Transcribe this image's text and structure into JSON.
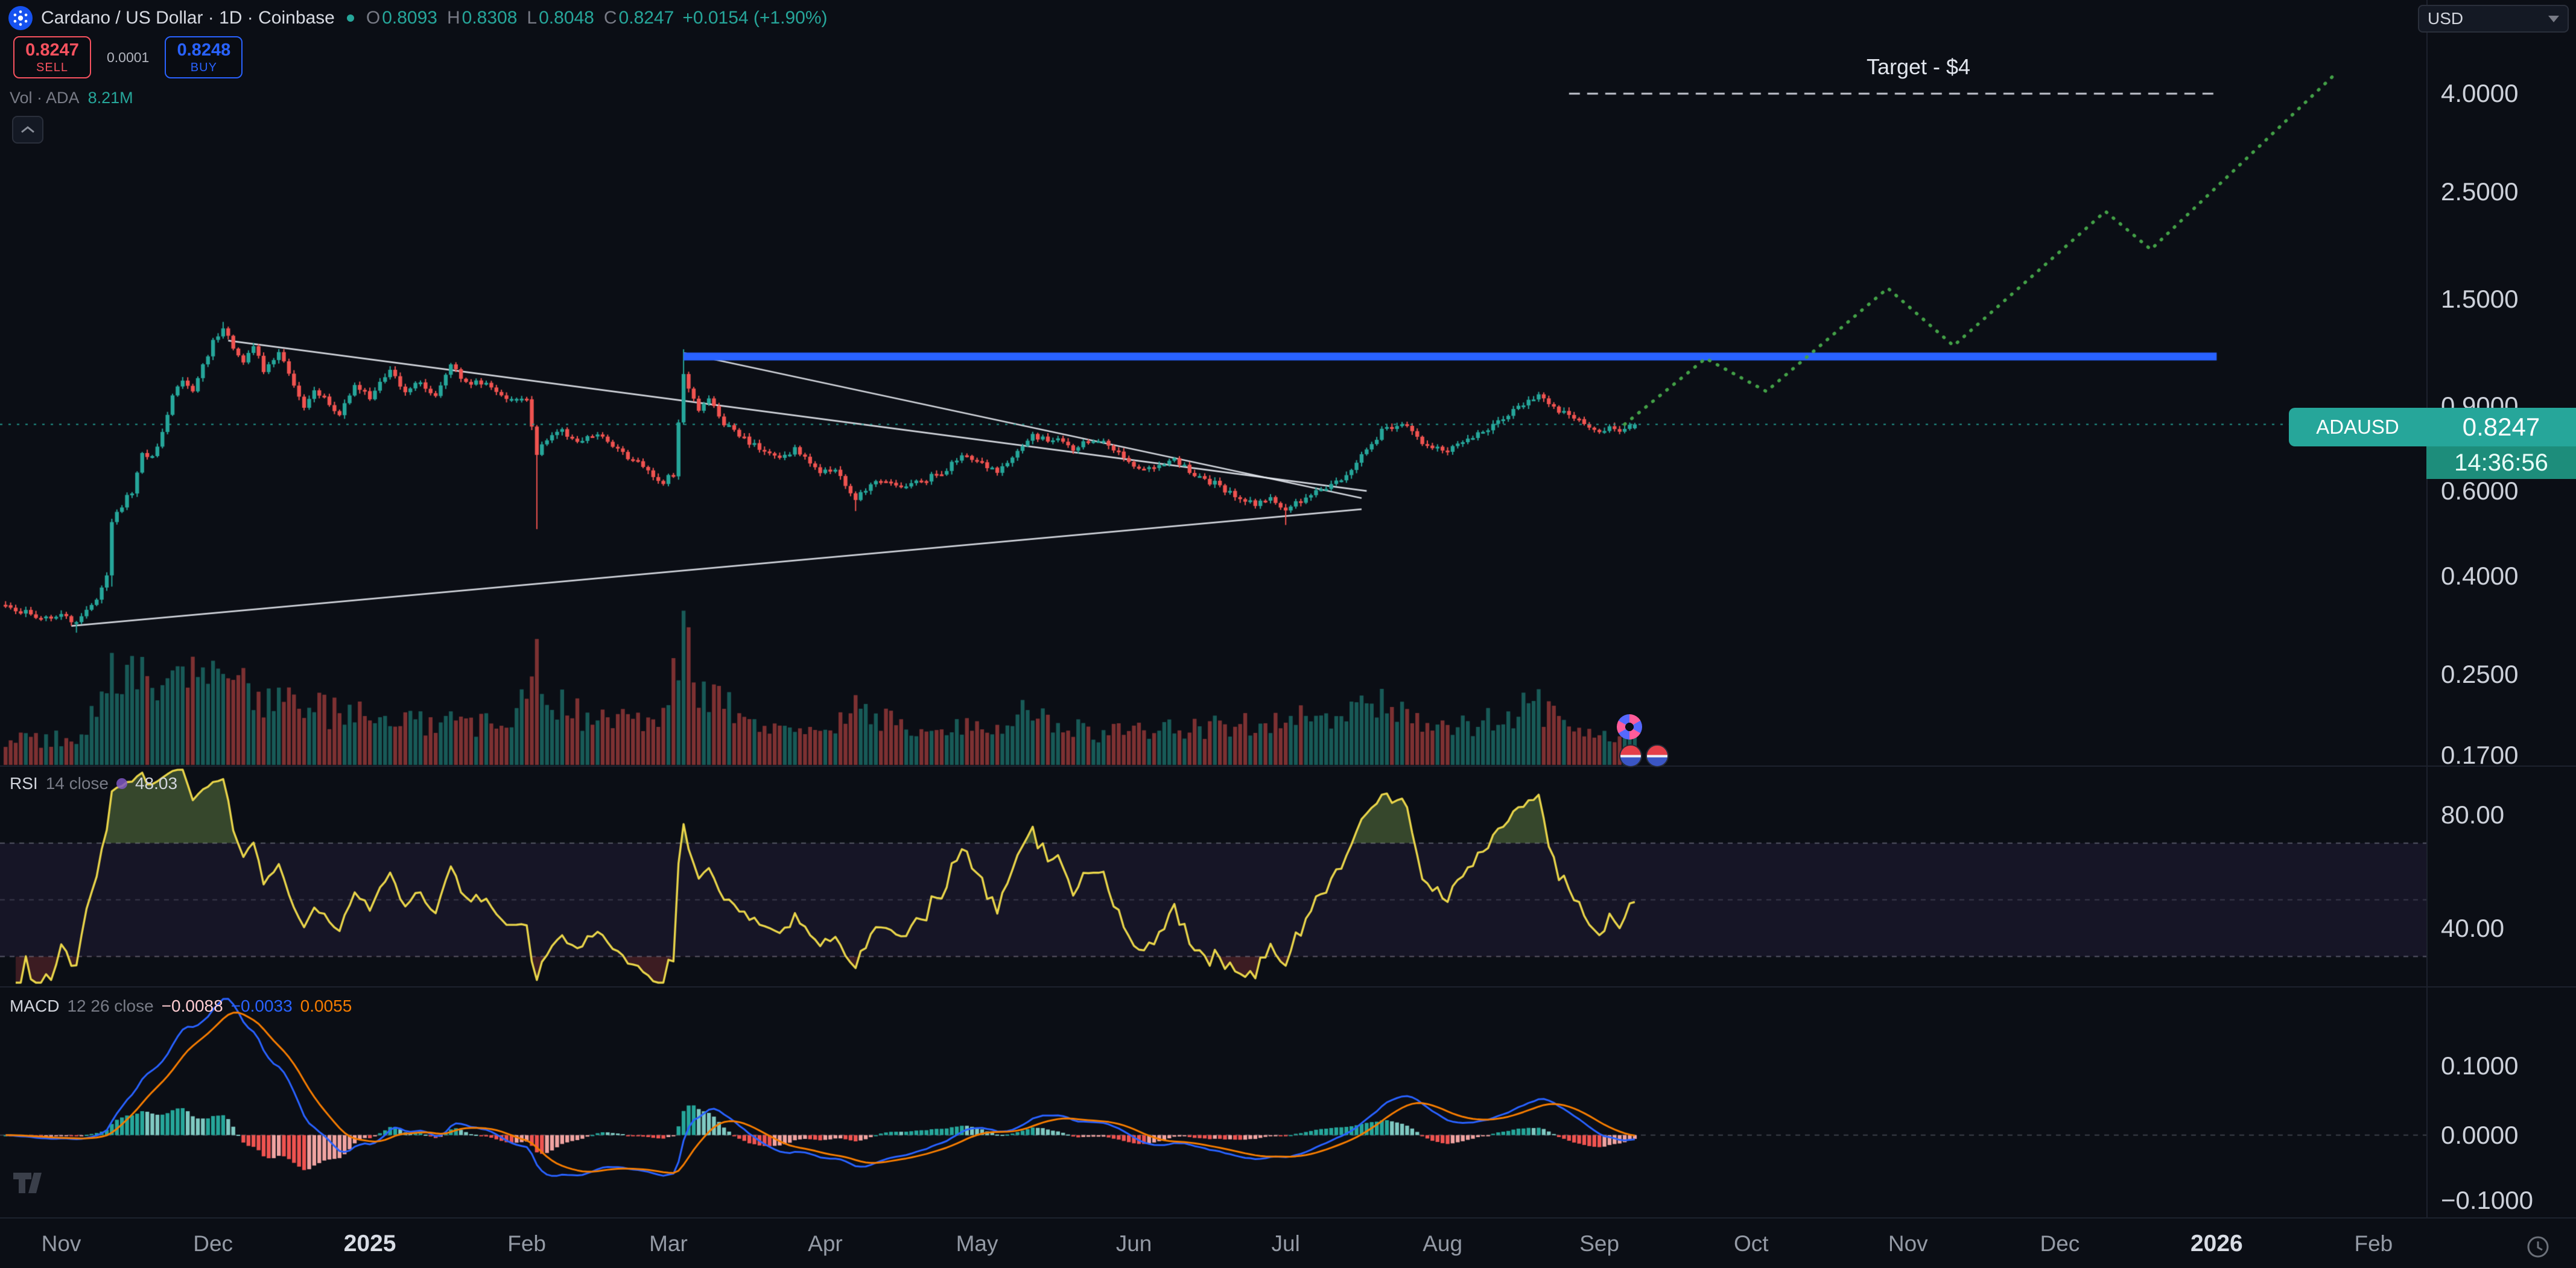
{
  "header": {
    "title": "Cardano / US Dollar · 1D · Coinbase",
    "ohlc": [
      {
        "k": "O",
        "v": "0.8093"
      },
      {
        "k": "H",
        "v": "0.8308"
      },
      {
        "k": "L",
        "v": "0.8048"
      },
      {
        "k": "C",
        "v": "0.8247"
      }
    ],
    "change": "+0.0154 (+1.90%)",
    "sell_price": "0.8247",
    "sell_label": "SELL",
    "spread": "0.0001",
    "buy_price": "0.8248",
    "buy_label": "BUY",
    "vol_label": "Vol · ADA",
    "vol_value": "8.21M"
  },
  "top_right": {
    "currency": "USD"
  },
  "price_label": {
    "symbol": "ADAUSD",
    "price": "0.8247",
    "countdown": "14:36:56"
  },
  "colors": {
    "up": "#26a69a",
    "down": "#ef5350",
    "blue_line": "#2962ff",
    "projection_green": "#43a047",
    "trendline_white": "rgba(235,238,245,0.88)",
    "rsi_yellow": "#e8d44a",
    "macd_blue": "#2962ff",
    "macd_signal_orange": "#f57c00",
    "price_tag_teal": "#26a69a",
    "sell_red": "#f7525f",
    "buy_blue": "#2962ff"
  },
  "chart_data": {
    "type": "candlestick",
    "title": "Cardano / US Dollar, 1D, Coinbase",
    "scale": "log",
    "last_day": 322,
    "last": {
      "open": 0.8093,
      "high": 0.8308,
      "low": 0.8048,
      "close": 0.8247
    },
    "price_axis": [
      {
        "text": "4.0000",
        "v": 4.0
      },
      {
        "text": "2.5000",
        "v": 2.5
      },
      {
        "text": "1.5000",
        "v": 1.5
      },
      {
        "text": "0.9000",
        "v": 0.9
      },
      {
        "text": "0.6000",
        "v": 0.6
      },
      {
        "text": "0.4000",
        "v": 0.4
      },
      {
        "text": "0.2500",
        "v": 0.25
      },
      {
        "text": "0.1700",
        "v": 0.17
      }
    ],
    "time_axis": [
      {
        "label": "Nov",
        "day": 11
      },
      {
        "label": "Dec",
        "day": 41
      },
      {
        "label": "2025",
        "day": 72,
        "year": true
      },
      {
        "label": "Feb",
        "day": 103
      },
      {
        "label": "Mar",
        "day": 131
      },
      {
        "label": "Apr",
        "day": 162
      },
      {
        "label": "May",
        "day": 192
      },
      {
        "label": "Jun",
        "day": 223
      },
      {
        "label": "Jul",
        "day": 253
      },
      {
        "label": "Aug",
        "day": 284
      },
      {
        "label": "Sep",
        "day": 315
      },
      {
        "label": "Oct",
        "day": 345
      },
      {
        "label": "Nov",
        "day": 376
      },
      {
        "label": "Dec",
        "day": 406
      },
      {
        "label": "2026",
        "day": 437,
        "year": true
      },
      {
        "label": "Feb",
        "day": 468
      }
    ],
    "price_path": [
      [
        0,
        0.345
      ],
      [
        4,
        0.335
      ],
      [
        8,
        0.328
      ],
      [
        11,
        0.332
      ],
      [
        14,
        0.322
      ],
      [
        17,
        0.345
      ],
      [
        20,
        0.4
      ],
      [
        21,
        0.52
      ],
      [
        23,
        0.56
      ],
      [
        25,
        0.6
      ],
      [
        27,
        0.72
      ],
      [
        29,
        0.7
      ],
      [
        31,
        0.79
      ],
      [
        33,
        0.94
      ],
      [
        35,
        1.02
      ],
      [
        37,
        0.97
      ],
      [
        39,
        1.09
      ],
      [
        41,
        1.22
      ],
      [
        43,
        1.31
      ],
      [
        45,
        1.2
      ],
      [
        47,
        1.1
      ],
      [
        49,
        1.21
      ],
      [
        51,
        1.07
      ],
      [
        54,
        1.17
      ],
      [
        56,
        1.05
      ],
      [
        59,
        0.89
      ],
      [
        61,
        0.97
      ],
      [
        63,
        0.93
      ],
      [
        66,
        0.87
      ],
      [
        69,
        0.99
      ],
      [
        72,
        0.94
      ],
      [
        74,
        1.0
      ],
      [
        76,
        1.07
      ],
      [
        79,
        0.97
      ],
      [
        82,
        1.01
      ],
      [
        85,
        0.94
      ],
      [
        88,
        1.09
      ],
      [
        91,
        1.0
      ],
      [
        95,
        1.01
      ],
      [
        99,
        0.92
      ],
      [
        103,
        0.93
      ],
      [
        105,
        0.71
      ],
      [
        107,
        0.77
      ],
      [
        110,
        0.8
      ],
      [
        113,
        0.76
      ],
      [
        117,
        0.785
      ],
      [
        121,
        0.73
      ],
      [
        125,
        0.69
      ],
      [
        128,
        0.645
      ],
      [
        130,
        0.625
      ],
      [
        132,
        0.65
      ],
      [
        134,
        1.05
      ],
      [
        135,
        0.98
      ],
      [
        137,
        0.88
      ],
      [
        139,
        0.93
      ],
      [
        141,
        0.85
      ],
      [
        144,
        0.8
      ],
      [
        147,
        0.76
      ],
      [
        150,
        0.72
      ],
      [
        153,
        0.7
      ],
      [
        156,
        0.73
      ],
      [
        159,
        0.69
      ],
      [
        161,
        0.66
      ],
      [
        164,
        0.655
      ],
      [
        168,
        0.578
      ],
      [
        171,
        0.62
      ],
      [
        174,
        0.635
      ],
      [
        178,
        0.61
      ],
      [
        182,
        0.635
      ],
      [
        186,
        0.665
      ],
      [
        189,
        0.715
      ],
      [
        192,
        0.69
      ],
      [
        196,
        0.665
      ],
      [
        199,
        0.7
      ],
      [
        203,
        0.785
      ],
      [
        206,
        0.76
      ],
      [
        209,
        0.77
      ],
      [
        211,
        0.73
      ],
      [
        214,
        0.765
      ],
      [
        218,
        0.75
      ],
      [
        221,
        0.71
      ],
      [
        223,
        0.665
      ],
      [
        227,
        0.67
      ],
      [
        231,
        0.7
      ],
      [
        235,
        0.645
      ],
      [
        239,
        0.62
      ],
      [
        243,
        0.585
      ],
      [
        247,
        0.56
      ],
      [
        250,
        0.575
      ],
      [
        253,
        0.55
      ],
      [
        255,
        0.565
      ],
      [
        257,
        0.585
      ],
      [
        261,
        0.61
      ],
      [
        265,
        0.645
      ],
      [
        269,
        0.735
      ],
      [
        272,
        0.8
      ],
      [
        275,
        0.825
      ],
      [
        277,
        0.815
      ],
      [
        279,
        0.77
      ],
      [
        282,
        0.745
      ],
      [
        285,
        0.725
      ],
      [
        288,
        0.76
      ],
      [
        291,
        0.79
      ],
      [
        294,
        0.825
      ],
      [
        297,
        0.865
      ],
      [
        300,
        0.91
      ],
      [
        303,
        0.945
      ],
      [
        305,
        0.92
      ],
      [
        307,
        0.875
      ],
      [
        309,
        0.86
      ],
      [
        311,
        0.835
      ],
      [
        313,
        0.815
      ],
      [
        315,
        0.79
      ],
      [
        317,
        0.815
      ],
      [
        319,
        0.805
      ],
      [
        321,
        0.823
      ],
      [
        322,
        0.8247
      ]
    ],
    "wick_extremes": [
      {
        "day": 14,
        "low": 0.305
      },
      {
        "day": 21,
        "low": 0.38
      },
      {
        "day": 43,
        "high": 1.345
      },
      {
        "day": 105,
        "low": 0.5
      },
      {
        "day": 134,
        "high": 1.18
      },
      {
        "day": 168,
        "low": 0.545
      },
      {
        "day": 253,
        "low": 0.51
      }
    ],
    "volume_profile": [
      [
        0,
        0.18
      ],
      [
        15,
        0.2
      ],
      [
        20,
        0.6
      ],
      [
        25,
        0.8
      ],
      [
        30,
        0.65
      ],
      [
        35,
        0.85
      ],
      [
        43,
        0.7
      ],
      [
        50,
        0.5
      ],
      [
        58,
        0.42
      ],
      [
        66,
        0.38
      ],
      [
        74,
        0.33
      ],
      [
        82,
        0.3
      ],
      [
        90,
        0.3
      ],
      [
        99,
        0.28
      ],
      [
        105,
        0.7
      ],
      [
        110,
        0.42
      ],
      [
        117,
        0.3
      ],
      [
        125,
        0.35
      ],
      [
        130,
        0.42
      ],
      [
        134,
        1.0
      ],
      [
        137,
        0.55
      ],
      [
        141,
        0.45
      ],
      [
        147,
        0.32
      ],
      [
        152,
        0.26
      ],
      [
        158,
        0.24
      ],
      [
        164,
        0.3
      ],
      [
        168,
        0.46
      ],
      [
        172,
        0.36
      ],
      [
        180,
        0.24
      ],
      [
        188,
        0.26
      ],
      [
        196,
        0.3
      ],
      [
        203,
        0.4
      ],
      [
        210,
        0.26
      ],
      [
        218,
        0.24
      ],
      [
        226,
        0.28
      ],
      [
        234,
        0.26
      ],
      [
        242,
        0.3
      ],
      [
        250,
        0.28
      ],
      [
        256,
        0.34
      ],
      [
        262,
        0.3
      ],
      [
        269,
        0.42
      ],
      [
        274,
        0.46
      ],
      [
        280,
        0.3
      ],
      [
        286,
        0.3
      ],
      [
        292,
        0.32
      ],
      [
        298,
        0.36
      ],
      [
        301,
        0.58
      ],
      [
        305,
        0.36
      ],
      [
        310,
        0.3
      ],
      [
        315,
        0.28
      ],
      [
        319,
        0.24
      ],
      [
        322,
        0.2
      ]
    ],
    "overlays": {
      "resistance_line": {
        "price": 1.14,
        "from_day": 134,
        "to_day": 437
      },
      "target_line": {
        "price": 4.0,
        "label": "Target - $4",
        "from_day": 309,
        "to_day": 437
      },
      "projection": [
        [
          320,
          0.825
        ],
        [
          336,
          1.13
        ],
        [
          348,
          0.965
        ],
        [
          372,
          1.58
        ],
        [
          385,
          1.2
        ],
        [
          415,
          2.28
        ],
        [
          424,
          1.9
        ],
        [
          460,
          4.35
        ]
      ],
      "trendlines": [
        [
          [
            44,
            1.23
          ],
          [
            269,
            0.6
          ]
        ],
        [
          [
            134,
            1.16
          ],
          [
            268,
            0.58
          ]
        ],
        [
          [
            13,
            0.315
          ],
          [
            268,
            0.55
          ]
        ]
      ],
      "current_price_line": 0.8247
    },
    "indicators": {
      "rsi": {
        "name": "RSI",
        "params": "14 close",
        "value": "48.03",
        "period": 14,
        "bands": [
          70,
          50,
          30
        ],
        "axis": [
          {
            "text": "80.00",
            "v": 80
          },
          {
            "text": "40.00",
            "v": 40
          }
        ]
      },
      "macd": {
        "name": "MACD",
        "params": "12 26 close",
        "hist_value": "−0.0088",
        "macd_value": "−0.0033",
        "signal_value": "0.0055",
        "axis": [
          {
            "text": "0.1000",
            "v": 0.1
          },
          {
            "text": "0.0000",
            "v": 0
          },
          {
            "text": "−0.1000",
            "v": -0.1
          }
        ]
      }
    }
  }
}
